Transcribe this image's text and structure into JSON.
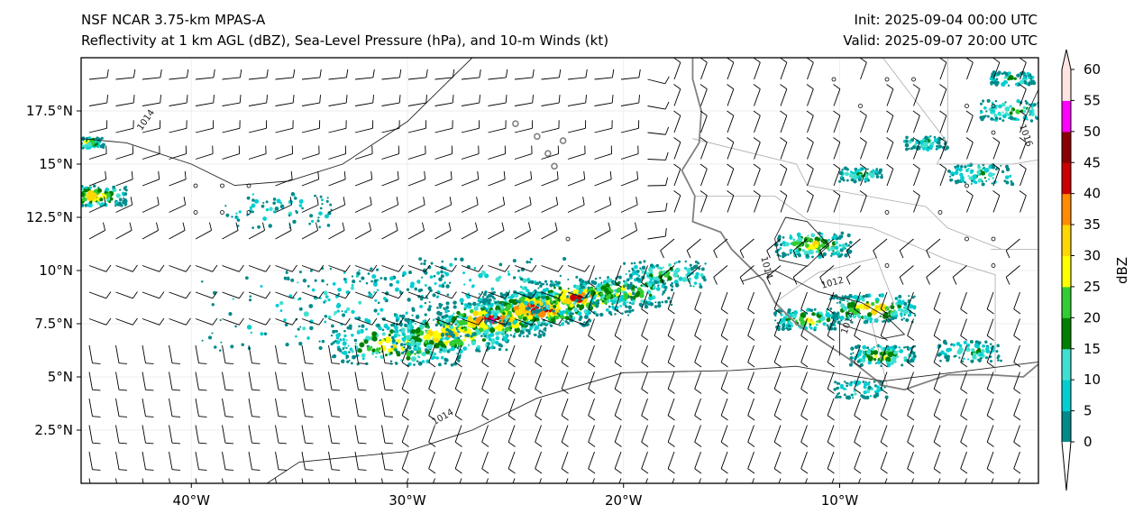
{
  "header": {
    "title_left_1": "NSF NCAR 3.75-km MPAS-A",
    "title_left_2": "Reflectivity at 1 km AGL (dBZ), Sea-Level Pressure (hPa), and 10-m Winds (kt)",
    "init": "Init: 2025-09-04 00:00 UTC",
    "valid": "Valid: 2025-09-07 20:00 UTC"
  },
  "map": {
    "lon_range": [
      -45.1,
      -0.8
    ],
    "lat_range": [
      0.0,
      20.0
    ],
    "x_ticks": [
      {
        "lon": -40,
        "label": "40°W"
      },
      {
        "lon": -30,
        "label": "30°W"
      },
      {
        "lon": -20,
        "label": "20°W"
      },
      {
        "lon": -10,
        "label": "10°W"
      }
    ],
    "y_ticks": [
      {
        "lat": 17.5,
        "label": "17.5°N"
      },
      {
        "lat": 15,
        "label": "15°N"
      },
      {
        "lat": 12.5,
        "label": "12.5°N"
      },
      {
        "lat": 10,
        "label": "10°N"
      },
      {
        "lat": 7.5,
        "label": "7.5°N"
      },
      {
        "lat": 5,
        "label": "5°N"
      },
      {
        "lat": 2.5,
        "label": "2.5°N"
      }
    ],
    "contour_labels": [
      "1014",
      "1014",
      "1014",
      "1012",
      "1014",
      "1016"
    ]
  },
  "colorbar": {
    "label": "dBZ",
    "levels": [
      0,
      5,
      10,
      15,
      20,
      25,
      30,
      35,
      40,
      45,
      50,
      55,
      60
    ],
    "tick_labels": [
      "0",
      "5",
      "10",
      "15",
      "20",
      "25",
      "30",
      "35",
      "40",
      "45",
      "50",
      "55",
      "60"
    ],
    "colors": [
      "#008b8b",
      "#00ced1",
      "#40e0d0",
      "#008000",
      "#32cd32",
      "#ffff00",
      "#ffd700",
      "#ff8c00",
      "#cc0000",
      "#8b0000",
      "#ff00ff",
      "#ffe4e1"
    ]
  }
}
